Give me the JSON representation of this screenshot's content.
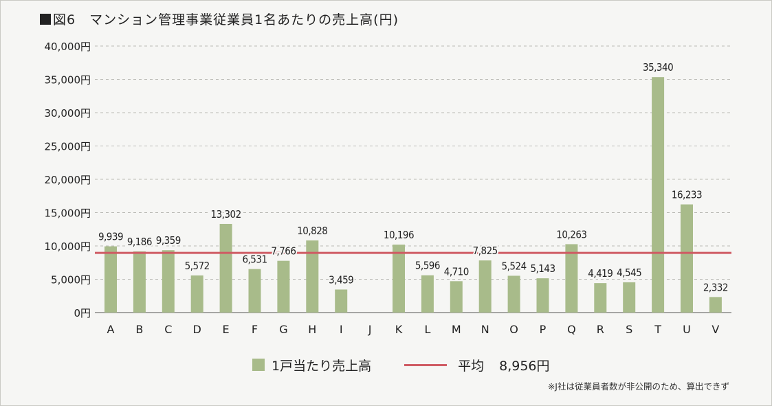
{
  "title": "図6　マンション管理事業従業員1名あたりの売上高(円)",
  "chart_data": {
    "type": "bar",
    "title": "図6　マンション管理事業従業員1名あたりの売上高(円)",
    "xlabel": "",
    "ylabel": "",
    "ylim": [
      0,
      40000
    ],
    "yticks": [
      0,
      5000,
      10000,
      15000,
      20000,
      25000,
      30000,
      35000,
      40000
    ],
    "ytick_labels": [
      "0円",
      "5,000円",
      "10,000円",
      "15,000円",
      "20,000円",
      "25,000円",
      "30,000円",
      "35,000円",
      "40,000円"
    ],
    "categories": [
      "A",
      "B",
      "C",
      "D",
      "E",
      "F",
      "G",
      "H",
      "I",
      "J",
      "K",
      "L",
      "M",
      "N",
      "O",
      "P",
      "Q",
      "R",
      "S",
      "T",
      "U",
      "V"
    ],
    "values": [
      9939,
      9186,
      9359,
      5572,
      13302,
      6531,
      7766,
      10828,
      3459,
      null,
      10196,
      5596,
      4710,
      7825,
      5524,
      5143,
      10263,
      4419,
      4545,
      35340,
      16233,
      2332
    ],
    "value_labels": [
      "9,939",
      "9,186",
      "9,359",
      "5,572",
      "13,302",
      "6,531",
      "7,766",
      "10,828",
      "3,459",
      "",
      "10,196",
      "5,596",
      "4,710",
      "7,825",
      "5,524",
      "5,143",
      "10,263",
      "4,419",
      "4,545",
      "35,340",
      "16,233",
      "2,332"
    ],
    "average": 8956,
    "grid": true,
    "bar_color": "#a8bb8a",
    "average_color": "#cf5b63",
    "legend_position": "bottom"
  },
  "legend": {
    "bar_label": "1戸当たり売上高",
    "line_label": "平均",
    "line_value": "8,956円"
  },
  "note": "※J社は従業員者数が非公開のため、算出できず"
}
